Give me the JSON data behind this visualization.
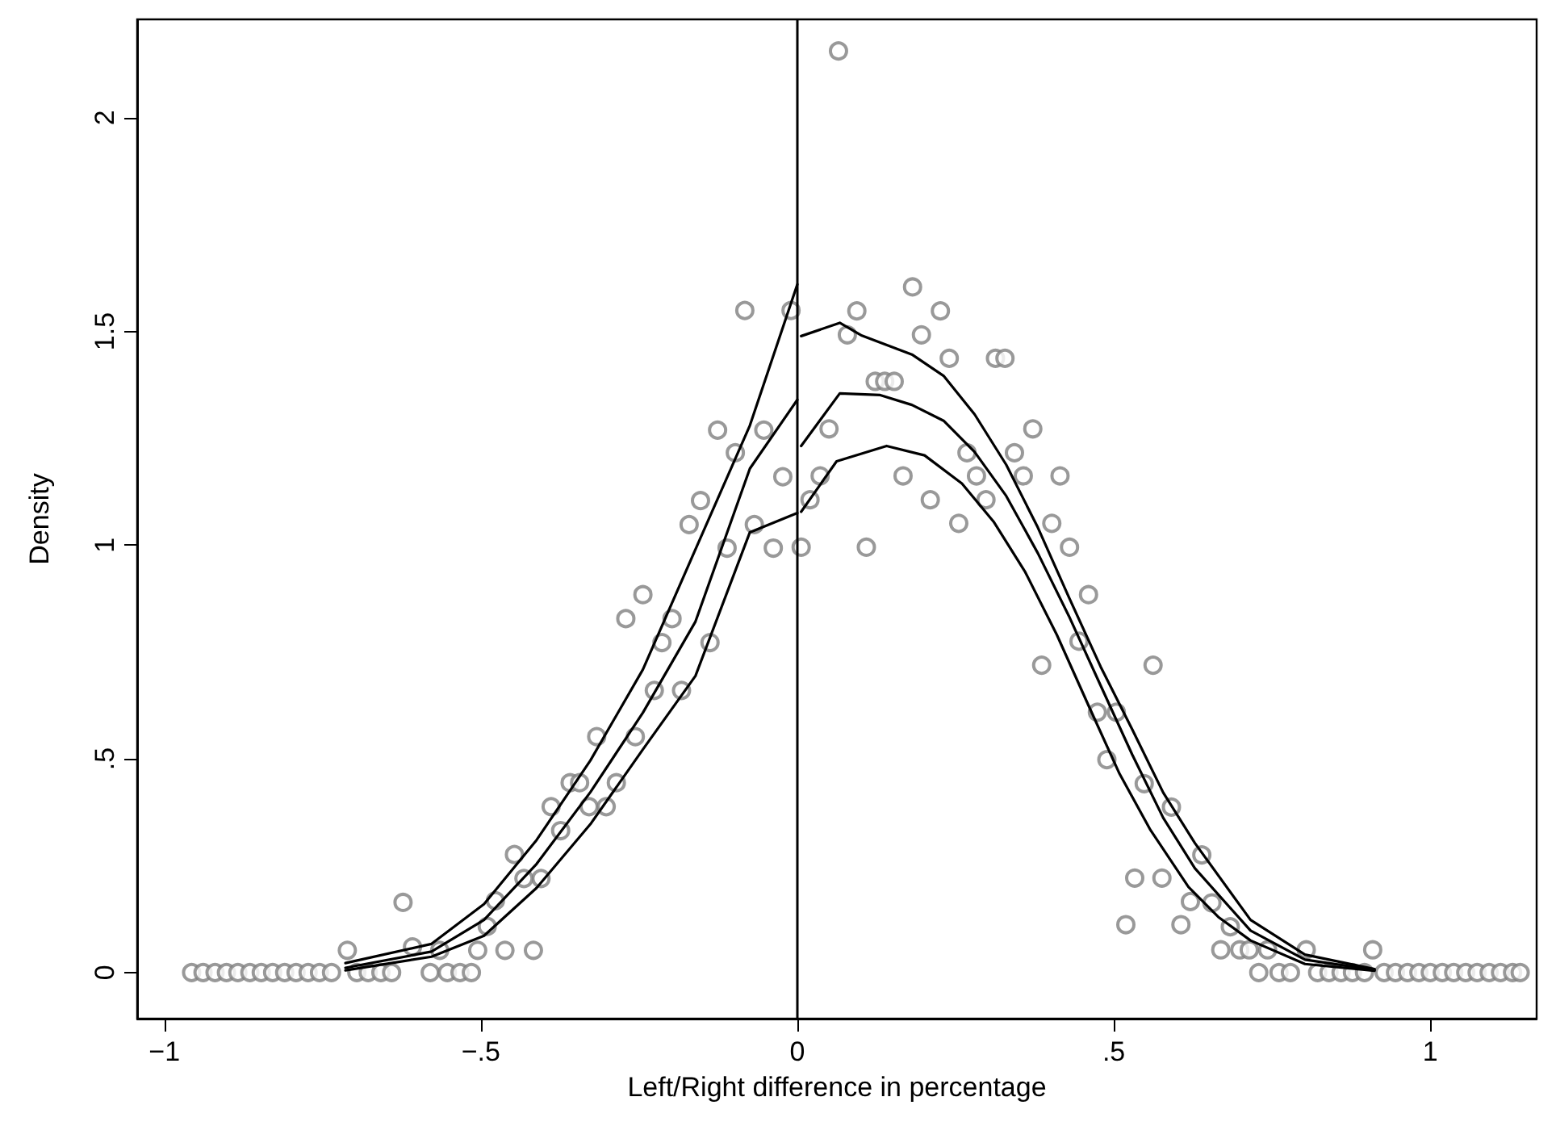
{
  "chart_data": {
    "type": "scatter",
    "xlabel": "Left/Right difference in percentage",
    "ylabel": "Density",
    "xlim": [
      -1.043,
      1.168
    ],
    "ylim": [
      -0.108,
      2.23
    ],
    "xticks": [
      {
        "value": -1,
        "label": "−1"
      },
      {
        "value": -0.5,
        "label": "−.5"
      },
      0,
      {
        "value": 0.5,
        "label": ".5"
      },
      1
    ],
    "yticks": [
      0,
      {
        "value": 0.5,
        "label": ".5"
      },
      1,
      1.5,
      2
    ],
    "grid": false,
    "ref_lines": [
      {
        "axis": "x",
        "value": 0,
        "color": "#000000",
        "line_style": "solid"
      }
    ],
    "series": [
      {
        "color": "#808080",
        "marker": "circle",
        "x": [
          -0.957,
          -0.939,
          -0.92,
          -0.902,
          -0.884,
          -0.865,
          -0.847,
          -0.829,
          -0.81,
          -0.792,
          -0.773,
          -0.755,
          -0.736,
          -0.696,
          -0.678,
          -0.658,
          -0.641,
          -0.58,
          -0.553,
          -0.533,
          -0.515,
          -0.711,
          -0.623,
          -0.608,
          -0.565,
          -0.505,
          -0.49,
          -0.477,
          -0.462,
          -0.417,
          -0.405,
          -0.432,
          -0.447,
          -0.374,
          -0.389,
          -0.329,
          -0.302,
          -0.359,
          -0.344,
          -0.286,
          -0.317,
          -0.256,
          -0.226,
          -0.183,
          -0.214,
          -0.198,
          -0.138,
          -0.271,
          -0.244,
          -0.171,
          -0.153,
          -0.111,
          -0.068,
          -0.038,
          -0.023,
          -0.098,
          -0.126,
          -0.053,
          -0.083,
          -0.01,
          0.065,
          0.006,
          0.02,
          0.036,
          0.05,
          0.079,
          0.094,
          0.109,
          0.123,
          0.138,
          0.153,
          0.167,
          0.182,
          0.196,
          0.21,
          0.226,
          0.24,
          0.255,
          0.268,
          0.283,
          0.298,
          0.313,
          0.328,
          0.343,
          0.357,
          0.372,
          0.386,
          0.402,
          0.415,
          0.43,
          0.445,
          0.46,
          0.474,
          0.489,
          0.504,
          0.519,
          0.533,
          0.548,
          0.562,
          0.576,
          0.591,
          0.606,
          0.621,
          0.639,
          0.655,
          0.684,
          0.669,
          0.699,
          0.714,
          0.743,
          0.804,
          0.909,
          0.729,
          0.761,
          0.779,
          0.822,
          0.84,
          0.859,
          0.877,
          0.896,
          0.927,
          0.945,
          0.964,
          0.982,
          1.0,
          1.019,
          1.037,
          1.056,
          1.074,
          1.093,
          1.111,
          1.13,
          1.142
        ],
        "values": [
          0,
          0,
          0,
          0,
          0,
          0,
          0,
          0,
          0,
          0,
          0,
          0,
          0,
          0,
          0,
          0,
          0,
          0,
          0,
          0,
          0,
          0.052,
          0.164,
          0.06,
          0.052,
          0.052,
          0.108,
          0.168,
          0.052,
          0.052,
          0.22,
          0.22,
          0.276,
          0.332,
          0.388,
          0.388,
          0.388,
          0.444,
          0.444,
          0.444,
          0.552,
          0.552,
          0.66,
          0.66,
          0.772,
          0.828,
          0.772,
          0.828,
          0.884,
          1.048,
          1.104,
          0.993,
          1.048,
          0.993,
          1.16,
          1.216,
          1.269,
          1.269,
          1.549,
          1.549,
          2.156,
          0.995,
          1.106,
          1.162,
          1.272,
          1.492,
          1.548,
          0.995,
          1.383,
          1.383,
          1.383,
          1.162,
          1.604,
          1.492,
          1.106,
          1.548,
          1.437,
          1.051,
          1.216,
          1.162,
          1.106,
          1.437,
          1.437,
          1.216,
          1.162,
          1.272,
          0.719,
          1.051,
          1.162,
          0.995,
          0.775,
          0.884,
          0.609,
          0.498,
          0.609,
          0.112,
          0.221,
          0.442,
          0.719,
          0.221,
          0.387,
          0.112,
          0.166,
          0.275,
          0.163,
          0.107,
          0.053,
          0.053,
          0.053,
          0.053,
          0.053,
          0.053,
          0,
          0,
          0,
          0,
          0,
          0,
          0,
          0,
          0,
          0,
          0,
          0,
          0,
          0,
          0,
          0,
          0,
          0,
          0,
          0,
          0
        ]
      },
      {
        "type": "line",
        "marker": "none",
        "color": "#000000",
        "x": [
          -0.714,
          -0.578,
          -0.495,
          -0.412,
          -0.327,
          -0.244,
          -0.161,
          -0.075,
          0
        ],
        "values": [
          0.011,
          0.049,
          0.123,
          0.254,
          0.422,
          0.608,
          0.821,
          1.179,
          1.34
        ]
      },
      {
        "type": "line",
        "marker": "none",
        "color": "#000000",
        "x": [
          -0.714,
          -0.578,
          -0.495,
          -0.412,
          -0.327,
          -0.244,
          -0.161,
          -0.075,
          0
        ],
        "values": [
          0.005,
          0.037,
          0.086,
          0.198,
          0.347,
          0.522,
          0.694,
          1.03,
          1.075
        ]
      },
      {
        "type": "line",
        "marker": "none",
        "color": "#000000",
        "x": [
          -0.714,
          -0.578,
          -0.495,
          -0.412,
          -0.327,
          -0.244,
          -0.161,
          -0.075,
          0
        ],
        "values": [
          0.022,
          0.067,
          0.16,
          0.31,
          0.496,
          0.709,
          0.99,
          1.28,
          1.61
        ]
      },
      {
        "type": "line",
        "marker": "none",
        "color": "#000000",
        "x": [
          0.006,
          0.067,
          0.131,
          0.181,
          0.231,
          0.28,
          0.33,
          0.38,
          0.429,
          0.479,
          0.529,
          0.578,
          0.628,
          0.716,
          0.802,
          0.912
        ],
        "values": [
          1.232,
          1.355,
          1.351,
          1.328,
          1.291,
          1.218,
          1.115,
          0.981,
          0.834,
          0.672,
          0.51,
          0.362,
          0.244,
          0.098,
          0.03,
          0.006
        ]
      },
      {
        "type": "line",
        "marker": "none",
        "color": "#000000",
        "x": [
          0.006,
          0.062,
          0.141,
          0.201,
          0.26,
          0.31,
          0.36,
          0.41,
          0.459,
          0.509,
          0.558,
          0.618,
          0.665,
          0.716,
          0.802,
          0.912
        ],
        "values": [
          1.078,
          1.196,
          1.232,
          1.21,
          1.144,
          1.055,
          0.937,
          0.79,
          0.628,
          0.465,
          0.333,
          0.2,
          0.13,
          0.075,
          0.02,
          0.004
        ]
      },
      {
        "type": "line",
        "marker": "none",
        "color": "#000000",
        "x": [
          0.006,
          0.067,
          0.102,
          0.181,
          0.231,
          0.28,
          0.33,
          0.38,
          0.429,
          0.479,
          0.529,
          0.578,
          0.628,
          0.716,
          0.802,
          0.912
        ],
        "values": [
          1.489,
          1.52,
          1.49,
          1.446,
          1.396,
          1.306,
          1.188,
          1.041,
          0.878,
          0.716,
          0.569,
          0.421,
          0.303,
          0.123,
          0.042,
          0.008
        ]
      }
    ]
  }
}
